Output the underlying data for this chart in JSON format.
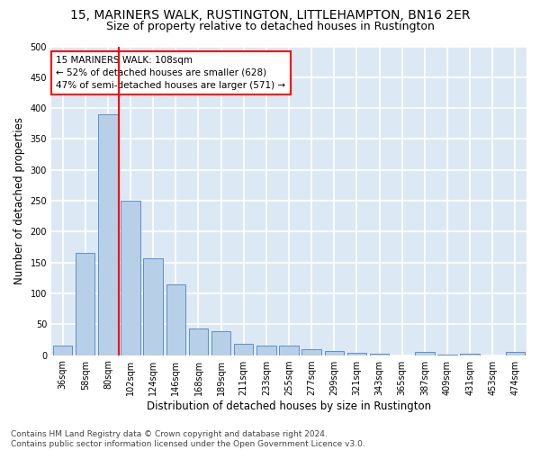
{
  "title": "15, MARINERS WALK, RUSTINGTON, LITTLEHAMPTON, BN16 2ER",
  "subtitle": "Size of property relative to detached houses in Rustington",
  "xlabel": "Distribution of detached houses by size in Rustington",
  "ylabel": "Number of detached properties",
  "bar_labels": [
    "36sqm",
    "58sqm",
    "80sqm",
    "102sqm",
    "124sqm",
    "146sqm",
    "168sqm",
    "189sqm",
    "211sqm",
    "233sqm",
    "255sqm",
    "277sqm",
    "299sqm",
    "321sqm",
    "343sqm",
    "365sqm",
    "387sqm",
    "409sqm",
    "431sqm",
    "453sqm",
    "474sqm"
  ],
  "bar_values": [
    15,
    166,
    390,
    250,
    157,
    115,
    43,
    39,
    19,
    15,
    16,
    9,
    6,
    4,
    3,
    0,
    5,
    1,
    2,
    0,
    5
  ],
  "bar_color": "#b8cfe8",
  "bar_edge_color": "#5b8fc9",
  "annotation_box_text": "15 MARINERS WALK: 108sqm\n← 52% of detached houses are smaller (628)\n47% of semi-detached houses are larger (571) →",
  "annotation_box_color": "white",
  "annotation_box_edge_color": "red",
  "vline_color": "red",
  "vline_x_index": 3,
  "ylim": [
    0,
    500
  ],
  "yticks": [
    0,
    50,
    100,
    150,
    200,
    250,
    300,
    350,
    400,
    450,
    500
  ],
  "footnote": "Contains HM Land Registry data © Crown copyright and database right 2024.\nContains public sector information licensed under the Open Government Licence v3.0.",
  "fig_bg_color": "#ffffff",
  "plot_bg_color": "#dce9f5",
  "grid_color": "#ffffff",
  "title_fontsize": 10,
  "subtitle_fontsize": 9,
  "axis_label_fontsize": 8.5,
  "tick_fontsize": 7,
  "footnote_fontsize": 6.5,
  "annot_fontsize": 7.5
}
